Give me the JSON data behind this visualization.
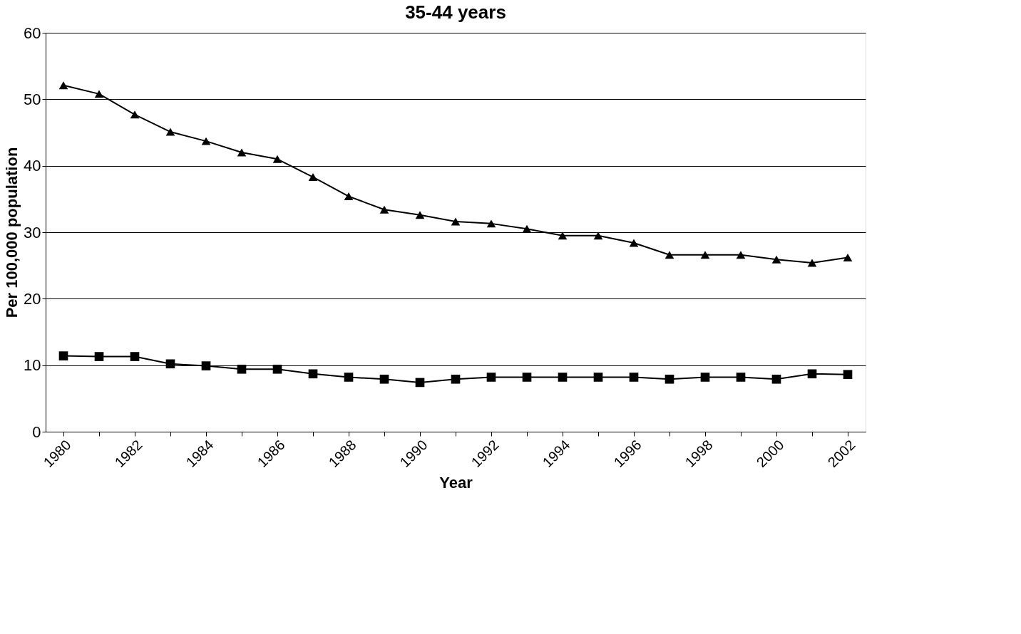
{
  "chart_data": {
    "type": "line",
    "title": "35-44 years",
    "xlabel": "Year",
    "ylabel": "Per 100,000 population",
    "categories": [
      "1980",
      null,
      "1982",
      null,
      "1984",
      null,
      "1986",
      null,
      "1988",
      null,
      "1990",
      null,
      "1992",
      null,
      "1994",
      null,
      "1996",
      null,
      "1998",
      null,
      "2000",
      null,
      "2002"
    ],
    "series": [
      {
        "color": "#000000",
        "marker": "triangle",
        "values": [
          52.1,
          50.8,
          47.7,
          45.1,
          43.7,
          42.0,
          41.0,
          38.3,
          35.4,
          33.4,
          32.6,
          31.6,
          31.3,
          30.5,
          29.5,
          29.5,
          28.4,
          26.6,
          26.6,
          26.6,
          25.9,
          25.4,
          26.2
        ]
      },
      {
        "color": "#000000",
        "marker": "square",
        "values": [
          11.4,
          11.3,
          11.3,
          10.2,
          9.9,
          9.4,
          9.4,
          8.7,
          8.2,
          7.9,
          7.4,
          7.9,
          8.2,
          8.2,
          8.2,
          8.2,
          8.2,
          7.9,
          8.2,
          8.2,
          7.9,
          8.7,
          8.6
        ]
      }
    ],
    "ylim": [
      0,
      60
    ],
    "yticks": [
      0,
      10,
      20,
      30,
      40,
      50,
      60
    ],
    "grid": "y"
  }
}
